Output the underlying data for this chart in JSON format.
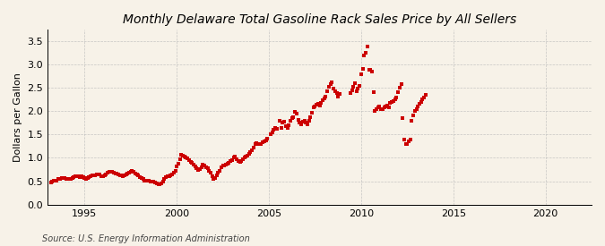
{
  "title": "Monthly Delaware Total Gasoline Rack Sales Price by All Sellers",
  "ylabel": "Dollars per Gallon",
  "source": "Source: U.S. Energy Information Administration",
  "background_color": "#F7F2E8",
  "plot_bg_color": "#F7F2E8",
  "marker_color": "#CC0000",
  "marker": "s",
  "marker_size": 2.8,
  "xlim": [
    1993.0,
    2022.5
  ],
  "ylim": [
    0.0,
    3.75
  ],
  "yticks": [
    0.0,
    0.5,
    1.0,
    1.5,
    2.0,
    2.5,
    3.0,
    3.5
  ],
  "xticks": [
    1995,
    2000,
    2005,
    2010,
    2015,
    2020
  ],
  "grid_color": "#BBBBBB",
  "title_fontsize": 10,
  "label_fontsize": 8,
  "tick_fontsize": 8,
  "source_fontsize": 7,
  "data": [
    [
      1993.17,
      0.48
    ],
    [
      1993.25,
      0.5
    ],
    [
      1993.33,
      0.51
    ],
    [
      1993.42,
      0.51
    ],
    [
      1993.5,
      0.52
    ],
    [
      1993.58,
      0.54
    ],
    [
      1993.67,
      0.55
    ],
    [
      1993.75,
      0.57
    ],
    [
      1993.83,
      0.57
    ],
    [
      1993.92,
      0.56
    ],
    [
      1994.0,
      0.55
    ],
    [
      1994.08,
      0.55
    ],
    [
      1994.17,
      0.55
    ],
    [
      1994.25,
      0.54
    ],
    [
      1994.33,
      0.56
    ],
    [
      1994.42,
      0.58
    ],
    [
      1994.5,
      0.6
    ],
    [
      1994.58,
      0.6
    ],
    [
      1994.67,
      0.6
    ],
    [
      1994.75,
      0.59
    ],
    [
      1994.83,
      0.6
    ],
    [
      1994.92,
      0.58
    ],
    [
      1995.0,
      0.56
    ],
    [
      1995.08,
      0.55
    ],
    [
      1995.17,
      0.57
    ],
    [
      1995.25,
      0.59
    ],
    [
      1995.33,
      0.61
    ],
    [
      1995.42,
      0.63
    ],
    [
      1995.5,
      0.63
    ],
    [
      1995.58,
      0.63
    ],
    [
      1995.67,
      0.64
    ],
    [
      1995.75,
      0.65
    ],
    [
      1995.83,
      0.64
    ],
    [
      1995.92,
      0.61
    ],
    [
      1996.0,
      0.6
    ],
    [
      1996.08,
      0.62
    ],
    [
      1996.17,
      0.65
    ],
    [
      1996.25,
      0.68
    ],
    [
      1996.33,
      0.7
    ],
    [
      1996.42,
      0.71
    ],
    [
      1996.5,
      0.7
    ],
    [
      1996.58,
      0.68
    ],
    [
      1996.67,
      0.67
    ],
    [
      1996.75,
      0.66
    ],
    [
      1996.83,
      0.65
    ],
    [
      1996.92,
      0.63
    ],
    [
      1997.0,
      0.62
    ],
    [
      1997.08,
      0.61
    ],
    [
      1997.17,
      0.62
    ],
    [
      1997.25,
      0.64
    ],
    [
      1997.33,
      0.66
    ],
    [
      1997.42,
      0.68
    ],
    [
      1997.5,
      0.7
    ],
    [
      1997.58,
      0.72
    ],
    [
      1997.67,
      0.7
    ],
    [
      1997.75,
      0.67
    ],
    [
      1997.83,
      0.65
    ],
    [
      1997.92,
      0.63
    ],
    [
      1998.0,
      0.59
    ],
    [
      1998.08,
      0.56
    ],
    [
      1998.17,
      0.54
    ],
    [
      1998.25,
      0.52
    ],
    [
      1998.33,
      0.51
    ],
    [
      1998.42,
      0.52
    ],
    [
      1998.5,
      0.52
    ],
    [
      1998.58,
      0.5
    ],
    [
      1998.67,
      0.49
    ],
    [
      1998.75,
      0.49
    ],
    [
      1998.83,
      0.47
    ],
    [
      1998.92,
      0.45
    ],
    [
      1999.0,
      0.44
    ],
    [
      1999.08,
      0.44
    ],
    [
      1999.17,
      0.46
    ],
    [
      1999.25,
      0.5
    ],
    [
      1999.33,
      0.54
    ],
    [
      1999.42,
      0.58
    ],
    [
      1999.5,
      0.6
    ],
    [
      1999.58,
      0.61
    ],
    [
      1999.67,
      0.62
    ],
    [
      1999.75,
      0.65
    ],
    [
      1999.83,
      0.68
    ],
    [
      1999.92,
      0.73
    ],
    [
      2000.0,
      0.82
    ],
    [
      2000.08,
      0.88
    ],
    [
      2000.17,
      0.97
    ],
    [
      2000.25,
      1.06
    ],
    [
      2000.33,
      1.05
    ],
    [
      2000.42,
      1.02
    ],
    [
      2000.5,
      1.0
    ],
    [
      2000.58,
      0.98
    ],
    [
      2000.67,
      0.96
    ],
    [
      2000.75,
      0.92
    ],
    [
      2000.83,
      0.9
    ],
    [
      2000.92,
      0.86
    ],
    [
      2001.0,
      0.82
    ],
    [
      2001.08,
      0.78
    ],
    [
      2001.17,
      0.74
    ],
    [
      2001.25,
      0.76
    ],
    [
      2001.33,
      0.8
    ],
    [
      2001.42,
      0.85
    ],
    [
      2001.5,
      0.83
    ],
    [
      2001.58,
      0.8
    ],
    [
      2001.67,
      0.78
    ],
    [
      2001.75,
      0.72
    ],
    [
      2001.83,
      0.68
    ],
    [
      2001.92,
      0.6
    ],
    [
      2002.0,
      0.55
    ],
    [
      2002.08,
      0.57
    ],
    [
      2002.17,
      0.62
    ],
    [
      2002.25,
      0.68
    ],
    [
      2002.33,
      0.73
    ],
    [
      2002.42,
      0.79
    ],
    [
      2002.5,
      0.83
    ],
    [
      2002.58,
      0.83
    ],
    [
      2002.67,
      0.85
    ],
    [
      2002.75,
      0.88
    ],
    [
      2002.83,
      0.9
    ],
    [
      2002.92,
      0.93
    ],
    [
      2003.0,
      0.95
    ],
    [
      2003.08,
      1.0
    ],
    [
      2003.17,
      1.03
    ],
    [
      2003.25,
      0.97
    ],
    [
      2003.33,
      0.93
    ],
    [
      2003.42,
      0.91
    ],
    [
      2003.5,
      0.94
    ],
    [
      2003.58,
      0.97
    ],
    [
      2003.67,
      1.0
    ],
    [
      2003.75,
      1.03
    ],
    [
      2003.83,
      1.05
    ],
    [
      2003.92,
      1.08
    ],
    [
      2004.0,
      1.12
    ],
    [
      2004.08,
      1.16
    ],
    [
      2004.17,
      1.21
    ],
    [
      2004.25,
      1.29
    ],
    [
      2004.33,
      1.32
    ],
    [
      2004.42,
      1.3
    ],
    [
      2004.5,
      1.29
    ],
    [
      2004.58,
      1.3
    ],
    [
      2004.67,
      1.33
    ],
    [
      2004.75,
      1.36
    ],
    [
      2004.83,
      1.38
    ],
    [
      2004.92,
      1.42
    ],
    [
      2005.08,
      1.5
    ],
    [
      2005.17,
      1.55
    ],
    [
      2005.25,
      1.61
    ],
    [
      2005.33,
      1.65
    ],
    [
      2005.42,
      1.63
    ],
    [
      2005.58,
      1.8
    ],
    [
      2005.67,
      1.65
    ],
    [
      2005.75,
      1.75
    ],
    [
      2005.83,
      1.78
    ],
    [
      2005.92,
      1.68
    ],
    [
      2006.0,
      1.65
    ],
    [
      2006.08,
      1.7
    ],
    [
      2006.17,
      1.79
    ],
    [
      2006.25,
      1.86
    ],
    [
      2006.33,
      1.88
    ],
    [
      2006.42,
      1.98
    ],
    [
      2006.5,
      1.94
    ],
    [
      2006.58,
      1.82
    ],
    [
      2006.67,
      1.76
    ],
    [
      2006.75,
      1.72
    ],
    [
      2006.83,
      1.77
    ],
    [
      2006.92,
      1.8
    ],
    [
      2007.0,
      1.75
    ],
    [
      2007.08,
      1.72
    ],
    [
      2007.17,
      1.8
    ],
    [
      2007.25,
      1.88
    ],
    [
      2007.33,
      1.97
    ],
    [
      2007.42,
      2.08
    ],
    [
      2007.5,
      2.1
    ],
    [
      2007.58,
      2.13
    ],
    [
      2007.67,
      2.16
    ],
    [
      2007.75,
      2.12
    ],
    [
      2007.83,
      2.18
    ],
    [
      2007.92,
      2.24
    ],
    [
      2008.0,
      2.28
    ],
    [
      2008.08,
      2.32
    ],
    [
      2008.17,
      2.42
    ],
    [
      2008.25,
      2.52
    ],
    [
      2008.33,
      2.58
    ],
    [
      2008.42,
      2.62
    ],
    [
      2008.5,
      2.48
    ],
    [
      2008.58,
      2.42
    ],
    [
      2008.67,
      2.38
    ],
    [
      2008.75,
      2.32
    ],
    [
      2008.83,
      2.37
    ],
    [
      2009.42,
      2.38
    ],
    [
      2009.5,
      2.44
    ],
    [
      2009.58,
      2.52
    ],
    [
      2009.67,
      2.6
    ],
    [
      2009.75,
      2.42
    ],
    [
      2009.83,
      2.48
    ],
    [
      2009.92,
      2.55
    ],
    [
      2010.0,
      2.8
    ],
    [
      2010.08,
      2.9
    ],
    [
      2010.17,
      3.2
    ],
    [
      2010.25,
      3.25
    ],
    [
      2010.33,
      3.38
    ],
    [
      2010.42,
      2.88
    ],
    [
      2010.5,
      2.88
    ],
    [
      2010.58,
      2.85
    ],
    [
      2010.67,
      2.4
    ],
    [
      2010.75,
      2.0
    ],
    [
      2010.83,
      2.04
    ],
    [
      2010.92,
      2.08
    ],
    [
      2011.0,
      2.1
    ],
    [
      2011.08,
      2.05
    ],
    [
      2011.17,
      2.05
    ],
    [
      2011.25,
      2.08
    ],
    [
      2011.33,
      2.1
    ],
    [
      2011.42,
      2.12
    ],
    [
      2011.5,
      2.08
    ],
    [
      2011.58,
      2.18
    ],
    [
      2011.67,
      2.2
    ],
    [
      2011.75,
      2.22
    ],
    [
      2011.83,
      2.25
    ],
    [
      2011.92,
      2.3
    ],
    [
      2012.0,
      2.4
    ],
    [
      2012.08,
      2.5
    ],
    [
      2012.17,
      2.58
    ],
    [
      2012.25,
      1.85
    ],
    [
      2012.33,
      1.4
    ],
    [
      2012.42,
      1.3
    ],
    [
      2012.5,
      1.3
    ],
    [
      2012.58,
      1.35
    ],
    [
      2012.67,
      1.4
    ],
    [
      2012.75,
      1.8
    ],
    [
      2012.83,
      1.9
    ],
    [
      2012.92,
      2.0
    ],
    [
      2013.0,
      2.05
    ],
    [
      2013.08,
      2.1
    ],
    [
      2013.17,
      2.15
    ],
    [
      2013.25,
      2.2
    ],
    [
      2013.33,
      2.25
    ],
    [
      2013.42,
      2.3
    ],
    [
      2013.5,
      2.35
    ]
  ]
}
